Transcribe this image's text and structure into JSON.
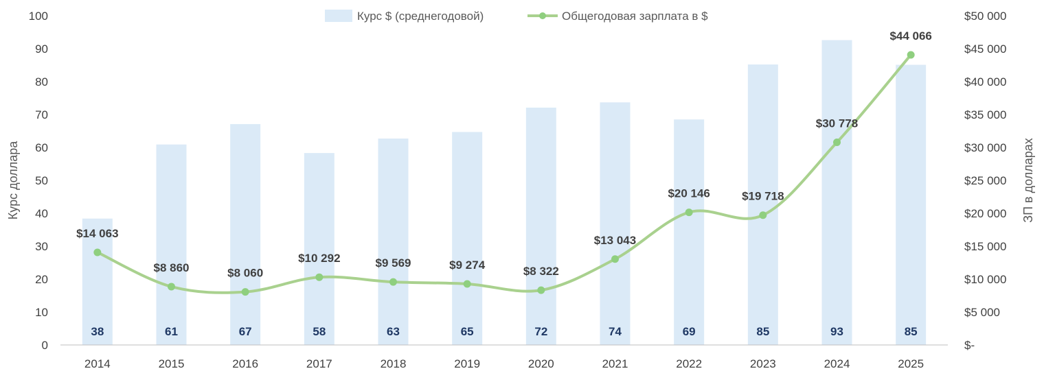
{
  "chart_data": {
    "type": "bar+line",
    "categories": [
      "2014",
      "2015",
      "2016",
      "2017",
      "2018",
      "2019",
      "2020",
      "2021",
      "2022",
      "2023",
      "2024",
      "2025"
    ],
    "series": [
      {
        "name": "Курс $ (среднегодовой)",
        "type": "bar",
        "axis": "left",
        "values": [
          38.4,
          60.9,
          67.1,
          58.3,
          62.7,
          64.7,
          72.1,
          73.7,
          68.5,
          85.2,
          92.6,
          85.1
        ],
        "labels": [
          "38",
          "61",
          "67",
          "58",
          "63",
          "65",
          "72",
          "74",
          "69",
          "85",
          "93",
          "85"
        ],
        "color": "#dbeaf7"
      },
      {
        "name": "Общегодовая зарплата в $",
        "type": "line",
        "axis": "right",
        "values": [
          14063,
          8860,
          8060,
          10292,
          9569,
          9274,
          8322,
          13043,
          20146,
          19718,
          30778,
          44066
        ],
        "labels": [
          "$14 063",
          "$8 860",
          "$8 060",
          "$10 292",
          "$9 569",
          "$9 274",
          "$8 322",
          "$13 043",
          "$20 146",
          "$19 718",
          "$30 778",
          "$44 066"
        ],
        "color": "#a9d18e",
        "marker_color": "#8fcf7f"
      }
    ],
    "y_left": {
      "label": "Курс доллара",
      "ylim": [
        0,
        100
      ],
      "ticks": [
        0,
        10,
        20,
        30,
        40,
        50,
        60,
        70,
        80,
        90,
        100
      ],
      "tick_labels": [
        "0",
        "10",
        "20",
        "30",
        "40",
        "50",
        "60",
        "70",
        "80",
        "90",
        "100"
      ]
    },
    "y_right": {
      "label": "ЗП в долларах",
      "ylim": [
        0,
        50000
      ],
      "ticks": [
        0,
        5000,
        10000,
        15000,
        20000,
        25000,
        30000,
        35000,
        40000,
        45000,
        50000
      ],
      "tick_labels": [
        "$-",
        "$5 000",
        "$10 000",
        "$15 000",
        "$20 000",
        "$25 000",
        "$30 000",
        "$35 000",
        "$40 000",
        "$45 000",
        "$50 000"
      ]
    },
    "grid": false,
    "legend_position": "top-center"
  }
}
